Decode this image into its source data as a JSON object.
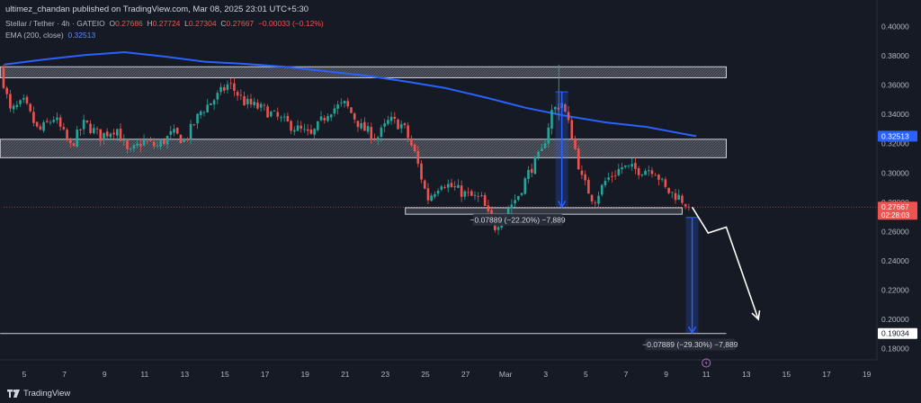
{
  "publisher_line": "ultimez_chandan published on TradingView.com, Mar 08, 2025 23:01 UTC+5:30",
  "legend": {
    "symbol": "Stellar / Tether · 4h · GATEIO",
    "o_label": "O",
    "o": "0.27686",
    "h_label": "H",
    "h": "0.27724",
    "l_label": "L",
    "l": "0.27304",
    "c_label": "C",
    "c": "0.27667",
    "change": "−0.00033 (−0.12%)",
    "ema_label": "EMA (200, close)",
    "ema_value": "0.32513"
  },
  "footer": {
    "brand": "TradingView"
  },
  "colors": {
    "background": "#161a25",
    "up": "#26a69a",
    "down": "#ef5350",
    "ema": "#2962ff",
    "zone": "#9598a1",
    "arrow": "#ffffff",
    "measure": "#2962ff"
  },
  "chart_data": {
    "type": "candlestick",
    "title": "Stellar / Tether · 4h · GATEIO",
    "x_ticks": [
      "5",
      "7",
      "9",
      "11",
      "13",
      "15",
      "17",
      "19",
      "21",
      "23",
      "25",
      "27",
      "Mar",
      "3",
      "5",
      "7",
      "9",
      "11",
      "13",
      "15",
      "17",
      "19"
    ],
    "y_ticks": [
      "0.40000",
      "0.38000",
      "0.36000",
      "0.34000",
      "0.32000",
      "0.30000",
      "0.28000",
      "0.26000",
      "0.24000",
      "0.22000",
      "0.20000",
      "0.18000"
    ],
    "ylim": [
      0.167,
      0.408
    ],
    "grid": false,
    "price_labels": [
      {
        "text": "0.32513",
        "value": 0.32513,
        "kind": "ema"
      },
      {
        "text": "0.27667",
        "value": 0.27667,
        "kind": "last",
        "countdown": "02:28:03"
      },
      {
        "text": "0.19034",
        "value": 0.19034,
        "kind": "target"
      }
    ],
    "ema_series": [
      {
        "day": 4.0,
        "value": 0.374
      },
      {
        "day": 6.0,
        "value": 0.3775
      },
      {
        "day": 8.0,
        "value": 0.3805
      },
      {
        "day": 10.0,
        "value": 0.3825
      },
      {
        "day": 12.0,
        "value": 0.3795
      },
      {
        "day": 14.0,
        "value": 0.376
      },
      {
        "day": 16.0,
        "value": 0.3745
      },
      {
        "day": 18.0,
        "value": 0.3725
      },
      {
        "day": 20.0,
        "value": 0.3695
      },
      {
        "day": 22.0,
        "value": 0.3665
      },
      {
        "day": 24.0,
        "value": 0.3625
      },
      {
        "day": 26.0,
        "value": 0.358
      },
      {
        "day": 28.0,
        "value": 0.3515
      },
      {
        "day": 30.0,
        "value": 0.3445
      },
      {
        "day": 32.0,
        "value": 0.339
      },
      {
        "day": 34.0,
        "value": 0.3345
      },
      {
        "day": 36.0,
        "value": 0.3315
      },
      {
        "day": 37.5,
        "value": 0.3276
      },
      {
        "day": 38.5,
        "value": 0.3251
      }
    ],
    "price_path": [
      {
        "day": 3.8,
        "value": 0.372
      },
      {
        "day": 4.3,
        "value": 0.342
      },
      {
        "day": 5.0,
        "value": 0.348
      },
      {
        "day": 5.7,
        "value": 0.328
      },
      {
        "day": 6.5,
        "value": 0.338
      },
      {
        "day": 7.3,
        "value": 0.318
      },
      {
        "day": 8.0,
        "value": 0.334
      },
      {
        "day": 8.8,
        "value": 0.325
      },
      {
        "day": 9.6,
        "value": 0.331
      },
      {
        "day": 10.2,
        "value": 0.312
      },
      {
        "day": 10.9,
        "value": 0.322
      },
      {
        "day": 11.6,
        "value": 0.318
      },
      {
        "day": 12.4,
        "value": 0.327
      },
      {
        "day": 13.0,
        "value": 0.322
      },
      {
        "day": 13.8,
        "value": 0.342
      },
      {
        "day": 14.6,
        "value": 0.352
      },
      {
        "day": 15.2,
        "value": 0.361
      },
      {
        "day": 16.0,
        "value": 0.348
      },
      {
        "day": 17.0,
        "value": 0.343
      },
      {
        "day": 17.8,
        "value": 0.336
      },
      {
        "day": 18.5,
        "value": 0.331
      },
      {
        "day": 19.3,
        "value": 0.325
      },
      {
        "day": 20.2,
        "value": 0.343
      },
      {
        "day": 21.0,
        "value": 0.347
      },
      {
        "day": 21.8,
        "value": 0.331
      },
      {
        "day": 22.6,
        "value": 0.324
      },
      {
        "day": 23.2,
        "value": 0.336
      },
      {
        "day": 23.9,
        "value": 0.332
      },
      {
        "day": 24.5,
        "value": 0.312
      },
      {
        "day": 25.1,
        "value": 0.282
      },
      {
        "day": 25.8,
        "value": 0.294
      },
      {
        "day": 26.5,
        "value": 0.289
      },
      {
        "day": 27.2,
        "value": 0.284
      },
      {
        "day": 27.8,
        "value": 0.282
      },
      {
        "day": 28.4,
        "value": 0.262
      },
      {
        "day": 29.0,
        "value": 0.274
      },
      {
        "day": 29.6,
        "value": 0.284
      },
      {
        "day": 30.2,
        "value": 0.302
      },
      {
        "day": 30.8,
        "value": 0.314
      },
      {
        "day": 31.3,
        "value": 0.342
      },
      {
        "day": 31.8,
        "value": 0.348
      },
      {
        "day": 32.3,
        "value": 0.326
      },
      {
        "day": 32.8,
        "value": 0.296
      },
      {
        "day": 33.4,
        "value": 0.281
      },
      {
        "day": 34.0,
        "value": 0.295
      },
      {
        "day": 34.8,
        "value": 0.304
      },
      {
        "day": 35.6,
        "value": 0.302
      },
      {
        "day": 36.4,
        "value": 0.303
      },
      {
        "day": 37.0,
        "value": 0.288
      },
      {
        "day": 37.6,
        "value": 0.284
      },
      {
        "day": 38.2,
        "value": 0.2767
      }
    ],
    "zones": [
      {
        "from_day": 3.8,
        "to_day": 40.0,
        "low": 0.365,
        "high": 0.3725
      },
      {
        "from_day": 3.8,
        "to_day": 40.0,
        "low": 0.3104,
        "high": 0.323
      },
      {
        "from_day": 24.0,
        "to_day": 37.8,
        "low": 0.2718,
        "high": 0.2762
      }
    ],
    "levels": [
      {
        "value": 0.19034,
        "from_day": 3.8,
        "to_day": 40.0
      }
    ],
    "measures": [
      {
        "day": 31.8,
        "from": 0.3554,
        "to": 0.2766,
        "label": "−0.07889 (−22.20%) −7,889",
        "label_day": 29.6,
        "label_value": 0.268
      },
      {
        "day": 38.3,
        "from": 0.2696,
        "to": 0.1907,
        "label": "−0.07889 (−29.30%) −7,889",
        "label_day": 38.2,
        "label_value": 0.1828
      }
    ],
    "projection": [
      {
        "day": 38.3,
        "value": 0.2766
      },
      {
        "day": 39.1,
        "value": 0.259
      },
      {
        "day": 40.0,
        "value": 0.263
      },
      {
        "day": 41.6,
        "value": 0.2
      }
    ]
  }
}
